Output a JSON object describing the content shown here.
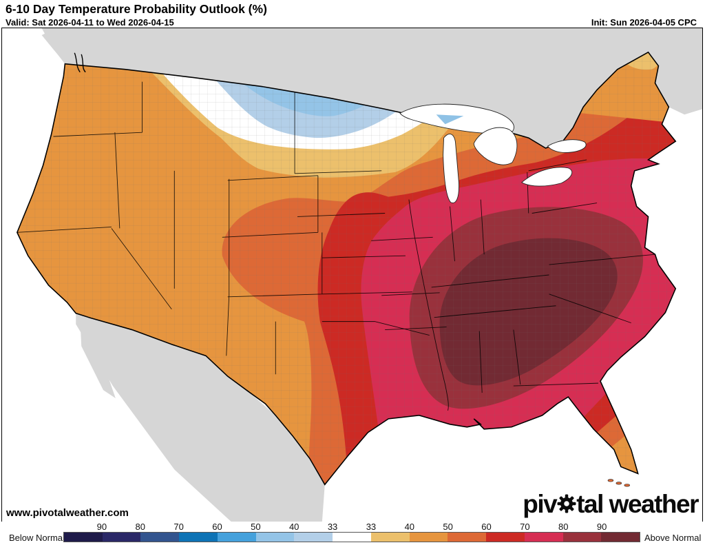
{
  "header": {
    "title": "6-10 Day Temperature Probability Outlook (%)",
    "valid_label": "Valid: Sat 2026-04-11 to Wed 2026-04-15",
    "init_label": "Init: Sun 2026-04-05 CPC"
  },
  "map": {
    "watermark": "www.pivotalweather.com",
    "logo_part1": "piv",
    "logo_part2": "tal weather",
    "logo_gear_icon": "gear-icon",
    "ocean_color": "#ffffff",
    "foreign_land_color": "#d6d6d6"
  },
  "legend": {
    "below_label": "Below Normal",
    "above_label": "Above Normal",
    "ticks_below": [
      "90",
      "80",
      "70",
      "60",
      "50",
      "40",
      "33"
    ],
    "ticks_above": [
      "33",
      "40",
      "50",
      "60",
      "70",
      "80",
      "90"
    ],
    "color_scale": [
      {
        "range": "below >90",
        "color": "#1f1b4a"
      },
      {
        "range": "below 80-90",
        "color": "#2a2867"
      },
      {
        "range": "below 70-80",
        "color": "#33548e"
      },
      {
        "range": "below 60-70",
        "color": "#0e73b5"
      },
      {
        "range": "below 50-60",
        "color": "#45a1dc"
      },
      {
        "range": "below 40-50",
        "color": "#94c4e7"
      },
      {
        "range": "below 33-40",
        "color": "#b3cfe8"
      },
      {
        "range": "equal chances 33",
        "color": "#ffffff"
      },
      {
        "range": "above 33-40",
        "color": "#ecc06c"
      },
      {
        "range": "above 40-50",
        "color": "#e6953f"
      },
      {
        "range": "above 50-60",
        "color": "#dd6936"
      },
      {
        "range": "above 60-70",
        "color": "#cc2a24"
      },
      {
        "range": "above 70-80",
        "color": "#d62e53"
      },
      {
        "range": "above 80-90",
        "color": "#99313c"
      },
      {
        "range": "above >90",
        "color": "#722a33"
      }
    ]
  }
}
